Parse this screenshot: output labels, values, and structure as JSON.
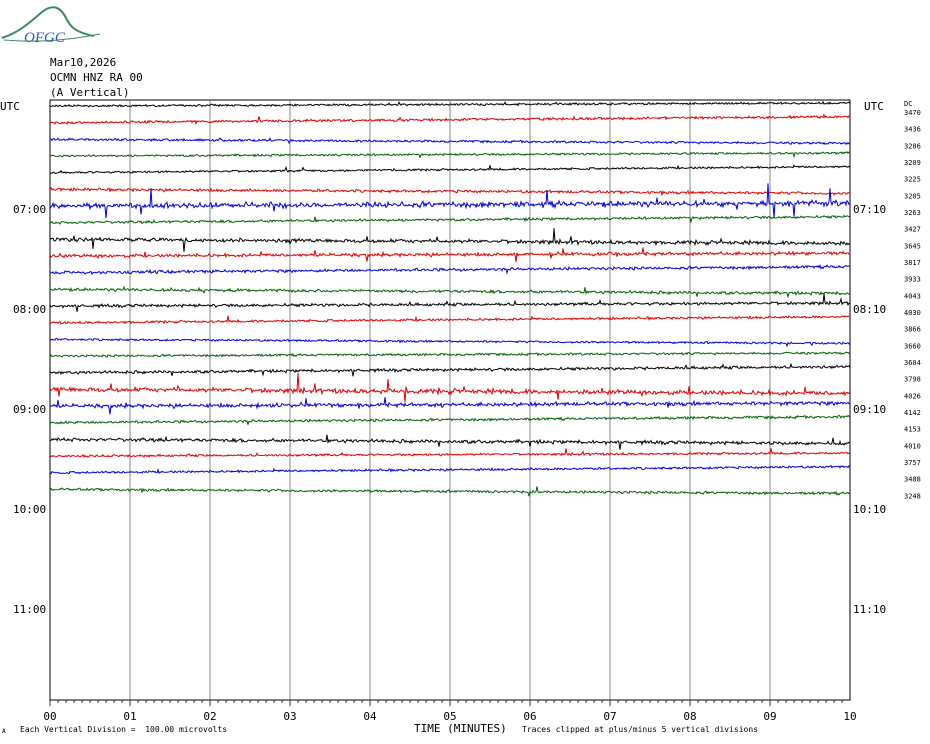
{
  "logo": {
    "text": "OFGC",
    "colors": {
      "arc": "#3a8c5c",
      "text": "#2a5db0"
    }
  },
  "header": {
    "date": "Mar10,2026",
    "station": "OCMN HNZ RA 00",
    "component": "(A Vertical)"
  },
  "utc_left": "UTC",
  "utc_right": "UTC",
  "dc_label": "DC",
  "footer": {
    "scale": "Each Vertical Division =  100.00 microvolts",
    "xlabel": "TIME (MINUTES)",
    "clip": "Traces clipped at plus/minus 5 vertical divisions",
    "mark": "A"
  },
  "chart_data": {
    "type": "line",
    "title": "",
    "xlabel": "TIME (MINUTES)",
    "x_ticks": [
      "00",
      "01",
      "02",
      "03",
      "04",
      "05",
      "06",
      "07",
      "08",
      "09",
      "10"
    ],
    "xlim": [
      0,
      10
    ],
    "grid": "vertical lines at every minute",
    "left_hour_labels": [
      "07:00",
      "08:00",
      "09:00",
      "10:00",
      "11:00"
    ],
    "right_hour_labels": [
      "07:10",
      "08:10",
      "09:10",
      "10:10",
      "11:10"
    ],
    "trace_colors": [
      "#000000",
      "#e00000",
      "#0000e0",
      "#006400"
    ],
    "series": [
      {
        "dc": "3470",
        "color": "#000000",
        "activity": 0.5
      },
      {
        "dc": "3436",
        "color": "#e00000",
        "activity": 0.7
      },
      {
        "dc": "3286",
        "color": "#0000e0",
        "activity": 0.6
      },
      {
        "dc": "3209",
        "color": "#006400",
        "activity": 0.5
      },
      {
        "dc": "3225",
        "color": "#000000",
        "activity": 0.5
      },
      {
        "dc": "3205",
        "color": "#e00000",
        "activity": 0.9
      },
      {
        "dc": "3263",
        "color": "#0000e0",
        "activity": 2.5
      },
      {
        "dc": "3427",
        "color": "#006400",
        "activity": 0.8
      },
      {
        "dc": "3645",
        "color": "#000000",
        "activity": 1.5
      },
      {
        "dc": "3817",
        "color": "#e00000",
        "activity": 1.2
      },
      {
        "dc": "3933",
        "color": "#0000e0",
        "activity": 1.0
      },
      {
        "dc": "4043",
        "color": "#006400",
        "activity": 1.0
      },
      {
        "dc": "4030",
        "color": "#000000",
        "activity": 1.0
      },
      {
        "dc": "3866",
        "color": "#e00000",
        "activity": 0.7
      },
      {
        "dc": "3660",
        "color": "#0000e0",
        "activity": 0.5
      },
      {
        "dc": "3604",
        "color": "#006400",
        "activity": 0.6
      },
      {
        "dc": "3798",
        "color": "#000000",
        "activity": 1.0
      },
      {
        "dc": "4026",
        "color": "#e00000",
        "activity": 2.0
      },
      {
        "dc": "4142",
        "color": "#0000e0",
        "activity": 1.5
      },
      {
        "dc": "4153",
        "color": "#006400",
        "activity": 0.8
      },
      {
        "dc": "4010",
        "color": "#000000",
        "activity": 1.3
      },
      {
        "dc": "3757",
        "color": "#e00000",
        "activity": 0.6
      },
      {
        "dc": "3488",
        "color": "#0000e0",
        "activity": 0.6
      },
      {
        "dc": "3248",
        "color": "#006400",
        "activity": 0.8
      }
    ]
  }
}
